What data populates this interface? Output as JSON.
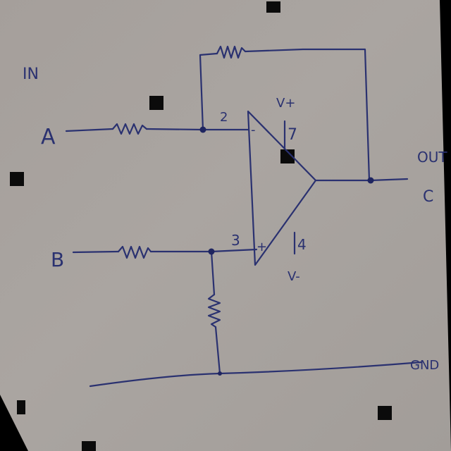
{
  "labels": {
    "in": "IN",
    "a": "A",
    "b": "B",
    "pin2": "2",
    "pin3": "3",
    "pin7": "7",
    "pin4": "4",
    "minus": "-",
    "plus": "+",
    "vplus": "V+",
    "vminus": "V-",
    "out": "OUT",
    "c": "C",
    "gnd": "GND"
  }
}
